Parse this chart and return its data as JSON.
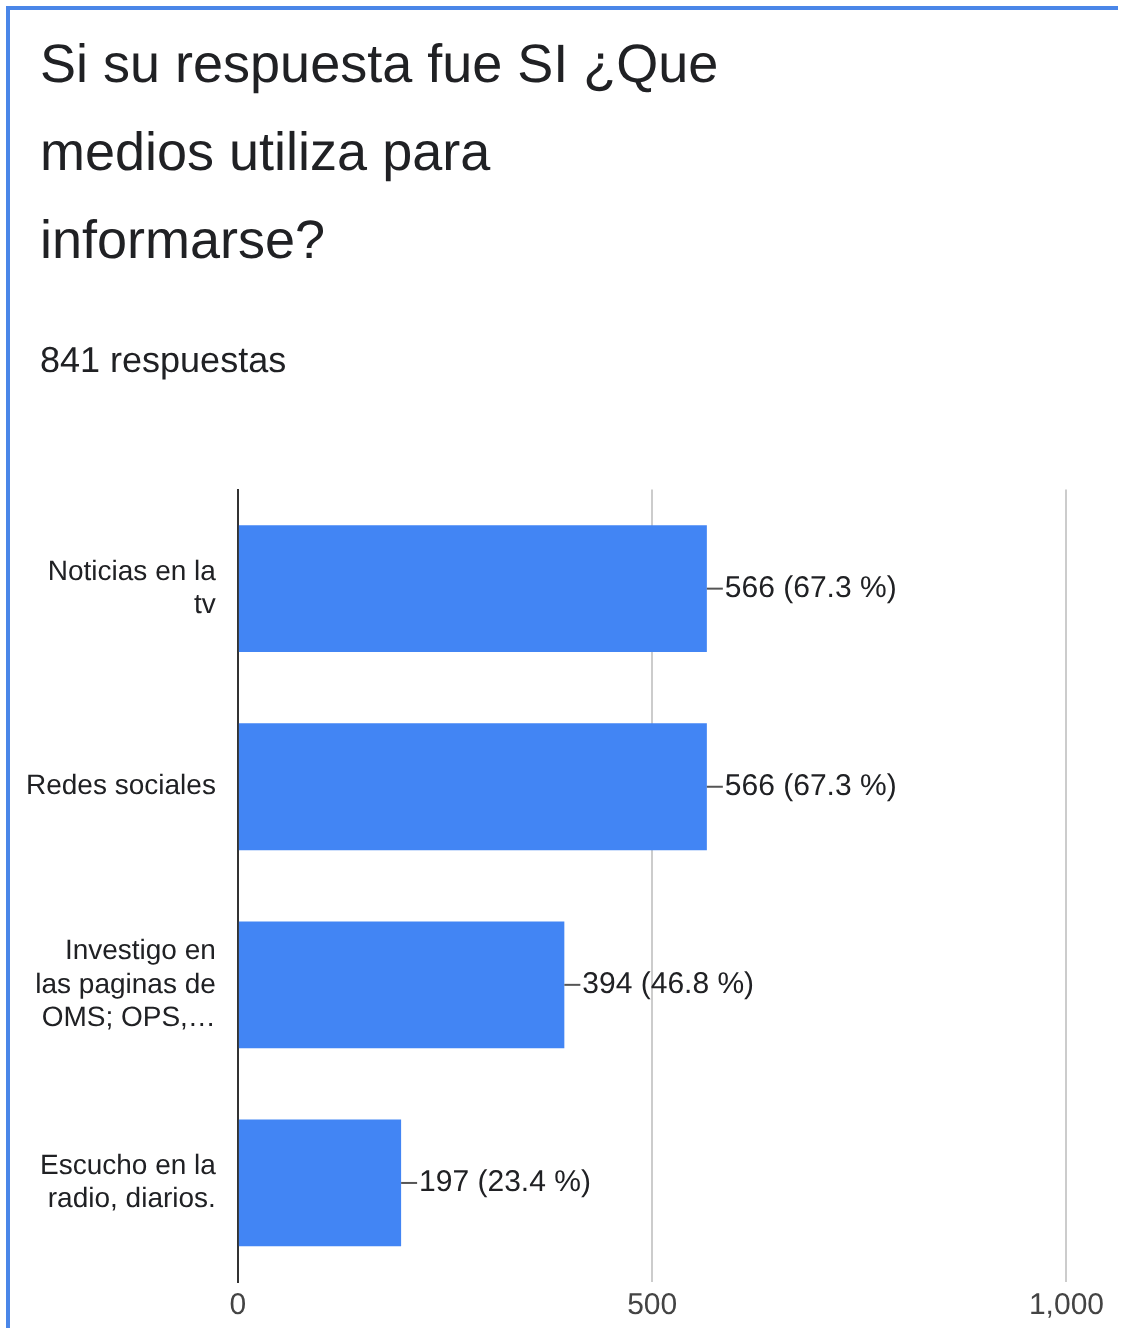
{
  "chart_data": {
    "type": "bar",
    "orientation": "horizontal",
    "title": "Si su respuesta fue SI ¿Que medios utiliza para informarse?",
    "subtitle": "841 respuestas",
    "categories": [
      "Noticias en la tv",
      "Redes sociales",
      "Investigo en las paginas de OMS; OPS,…",
      "Escucho en la radio, diarios."
    ],
    "values": [
      566,
      566,
      394,
      197
    ],
    "value_labels": [
      "566 (67.3 %)",
      "566 (67.3 %)",
      "394 (46.8 %)",
      "197 (23.4 %)"
    ],
    "color": "#4285f4",
    "xlim": [
      0,
      1000
    ],
    "xticks": [
      0,
      500,
      {
        "value": 1000,
        "label": "1,000"
      }
    ],
    "grid": "x",
    "legend": false
  }
}
